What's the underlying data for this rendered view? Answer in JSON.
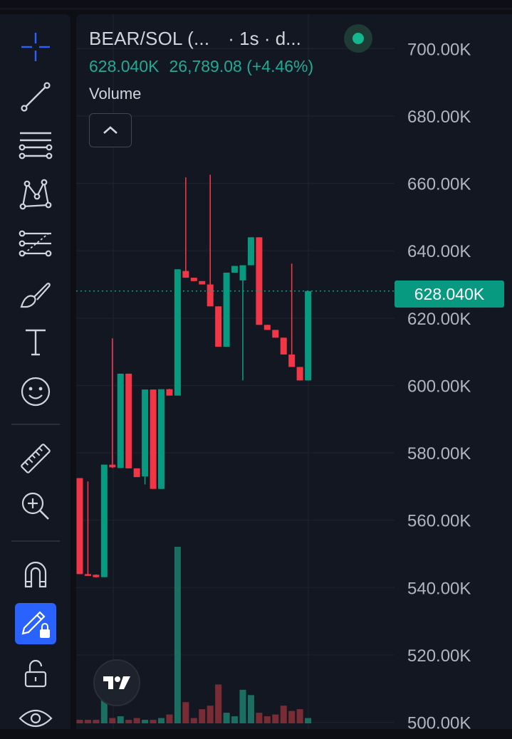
{
  "legend": {
    "symbol": "BEAR/SOL (...",
    "interval": "· 1s · d...",
    "last_price": "628.040K",
    "change": "26,789.08 (+4.46%)",
    "volume_label": "Volume"
  },
  "toolbar": {
    "tools": [
      "crosshair-icon",
      "trend-line-icon",
      "fib-retracement-icon",
      "pattern-icon",
      "projection-icon",
      "brush-icon",
      "text-icon",
      "emoji-icon",
      "ruler-icon",
      "zoom-in-icon",
      "magnet-icon",
      "lock-drawing-icon",
      "unlock-icon",
      "eye-icon"
    ],
    "active_tool": "lock-drawing-icon"
  },
  "colors": {
    "up": "#089981",
    "down": "#f23645",
    "up_volume": "#1b6f62",
    "down_volume": "#7a2c35",
    "background": "#131722",
    "accent": "#2962ff"
  },
  "chart_data": {
    "type": "candlestick",
    "title": "",
    "ylim": [
      498000,
      706000
    ],
    "y_ticks": [
      {
        "value": 700000,
        "label": "700.00K"
      },
      {
        "value": 680000,
        "label": "680.00K"
      },
      {
        "value": 660000,
        "label": "660.00K"
      },
      {
        "value": 640000,
        "label": "640.00K"
      },
      {
        "value": 620000,
        "label": "620.00K"
      },
      {
        "value": 600000,
        "label": "600.00K"
      },
      {
        "value": 580000,
        "label": "580.00K"
      },
      {
        "value": 560000,
        "label": "560.00K"
      },
      {
        "value": 540000,
        "label": "540.00K"
      },
      {
        "value": 520000,
        "label": "520.00K"
      },
      {
        "value": 500000,
        "label": "500.00K"
      }
    ],
    "last_price": {
      "value": 628040,
      "label": "628.040K"
    },
    "candles": [
      {
        "o": 572500,
        "h": 572500,
        "l": 544000,
        "c": 544000
      },
      {
        "o": 544000,
        "h": 571500,
        "l": 543800,
        "c": 543800
      },
      {
        "o": 543800,
        "h": 543900,
        "l": 543000,
        "c": 543100
      },
      {
        "o": 543100,
        "h": 576500,
        "l": 543100,
        "c": 576500
      },
      {
        "o": 576500,
        "h": 614000,
        "l": 575500,
        "c": 575700
      },
      {
        "o": 575500,
        "h": 603500,
        "l": 575500,
        "c": 603500
      },
      {
        "o": 603500,
        "h": 603500,
        "l": 575400,
        "c": 575400
      },
      {
        "o": 575400,
        "h": 575400,
        "l": 572800,
        "c": 572800
      },
      {
        "o": 573000,
        "h": 598800,
        "l": 570600,
        "c": 598800
      },
      {
        "o": 598800,
        "h": 598800,
        "l": 569300,
        "c": 569300
      },
      {
        "o": 569300,
        "h": 598900,
        "l": 569300,
        "c": 598900
      },
      {
        "o": 598900,
        "h": 599000,
        "l": 597000,
        "c": 597000
      },
      {
        "o": 597000,
        "h": 634500,
        "l": 597000,
        "c": 634500
      },
      {
        "o": 634000,
        "h": 661800,
        "l": 632000,
        "c": 632000
      },
      {
        "o": 632000,
        "h": 632000,
        "l": 631000,
        "c": 631000
      },
      {
        "o": 631000,
        "h": 631000,
        "l": 630000,
        "c": 630000
      },
      {
        "o": 630000,
        "h": 662600,
        "l": 623500,
        "c": 623500
      },
      {
        "o": 623500,
        "h": 623500,
        "l": 611500,
        "c": 611500
      },
      {
        "o": 611500,
        "h": 633500,
        "l": 611500,
        "c": 633500
      },
      {
        "o": 633500,
        "h": 635500,
        "l": 633500,
        "c": 635500
      },
      {
        "o": 631200,
        "h": 635700,
        "l": 601500,
        "c": 635700
      },
      {
        "o": 635700,
        "h": 644000,
        "l": 635700,
        "c": 644000
      },
      {
        "o": 644000,
        "h": 644000,
        "l": 618000,
        "c": 618000
      },
      {
        "o": 618000,
        "h": 618000,
        "l": 616500,
        "c": 616500
      },
      {
        "o": 616500,
        "h": 616500,
        "l": 614200,
        "c": 614200
      },
      {
        "o": 614200,
        "h": 614200,
        "l": 609200,
        "c": 609200
      },
      {
        "o": 609200,
        "h": 636200,
        "l": 605500,
        "c": 605500
      },
      {
        "o": 605500,
        "h": 605500,
        "l": 601500,
        "c": 601500
      },
      {
        "o": 601500,
        "h": 628040,
        "l": 601500,
        "c": 628040
      }
    ],
    "volume": [
      2,
      2,
      2,
      18,
      3,
      4,
      2,
      3,
      2,
      2,
      3,
      5,
      100,
      12,
      3,
      8,
      10,
      22,
      6,
      4,
      19,
      16,
      6,
      4,
      5,
      10,
      7,
      8,
      3
    ]
  }
}
